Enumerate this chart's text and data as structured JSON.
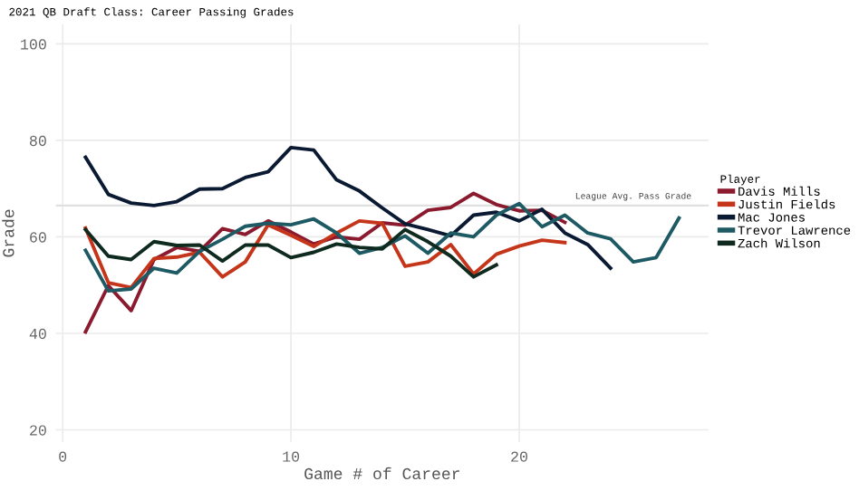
{
  "chart_data": {
    "type": "line",
    "title": "2021 QB Draft Class: Career Passing Grades",
    "xlabel": "Game # of Career",
    "ylabel": "Grade",
    "legend_title": "Player",
    "series": [
      {
        "name": "Davis Mills",
        "color": "#8b1a2e",
        "x": [
          1,
          2,
          3,
          4,
          5,
          6,
          7,
          8,
          9,
          10,
          11,
          12,
          13,
          14,
          15,
          16,
          17,
          18,
          19,
          20,
          21,
          22
        ],
        "values": [
          40.3,
          49.9,
          44.7,
          55.3,
          57.8,
          57,
          61.7,
          60.5,
          63.3,
          61,
          58.5,
          60,
          59.5,
          62.9,
          62.4,
          65.5,
          66.1,
          69,
          66.7,
          65.4,
          65.5,
          63
        ]
      },
      {
        "name": "Justin Fields",
        "color": "#c4351a",
        "x": [
          1,
          2,
          3,
          4,
          5,
          6,
          7,
          8,
          9,
          10,
          11,
          12,
          13,
          14,
          15,
          16,
          17,
          18,
          19,
          20,
          21,
          22
        ],
        "values": [
          61.8,
          50.5,
          49.5,
          55.5,
          55.8,
          56.8,
          51.7,
          54.8,
          62.5,
          60.3,
          58,
          60.8,
          63.3,
          62.8,
          53.9,
          54.8,
          58.4,
          52.3,
          56.4,
          58.1,
          59.3,
          58.8
        ]
      },
      {
        "name": "Mac Jones",
        "color": "#0b1a33",
        "x": [
          1,
          2,
          3,
          4,
          5,
          6,
          7,
          8,
          9,
          10,
          11,
          12,
          13,
          14,
          15,
          16,
          17,
          18,
          19,
          20,
          21,
          22,
          23,
          24
        ],
        "values": [
          76.5,
          68.8,
          67,
          66.5,
          67.3,
          69.9,
          70,
          72.3,
          73.5,
          78.5,
          78,
          71.8,
          69.5,
          66,
          62.7,
          61.5,
          60.2,
          64.5,
          65.1,
          63.3,
          65.7,
          60.8,
          58.4,
          53.5
        ]
      },
      {
        "name": "Trevor Lawrence",
        "color": "#1e5a63",
        "x": [
          1,
          2,
          3,
          4,
          5,
          6,
          7,
          8,
          9,
          10,
          11,
          12,
          13,
          14,
          15,
          16,
          17,
          18,
          19,
          20,
          21,
          22,
          23,
          24,
          25,
          26,
          27
        ],
        "values": [
          57.2,
          48.8,
          49.2,
          53.5,
          52.5,
          57,
          59.5,
          62.2,
          62.8,
          62.5,
          63.7,
          60.8,
          56.6,
          57.8,
          60.2,
          56.6,
          60.8,
          60,
          64.5,
          66.9,
          62.1,
          64.5,
          60.8,
          59.6,
          54.8,
          55.7,
          63.9
        ]
      },
      {
        "name": "Zach Wilson",
        "color": "#0f2a1f",
        "x": [
          1,
          2,
          3,
          4,
          5,
          6,
          7,
          8,
          9,
          10,
          11,
          12,
          13,
          14,
          15,
          16,
          17,
          18,
          19
        ],
        "values": [
          61.5,
          56,
          55.3,
          59,
          58.2,
          58.3,
          55,
          58.3,
          58.3,
          55.7,
          56.8,
          58.5,
          57.8,
          57.5,
          61.5,
          59,
          56,
          51.7,
          54.2
        ]
      }
    ],
    "ref_lines": [
      {
        "axis": "y",
        "value": 66.5,
        "label": "League Avg. Pass Grade",
        "color": "#e0e0e0"
      }
    ],
    "xlim": [
      -0.3,
      28.3
    ],
    "ylim": [
      17.5,
      104
    ],
    "xticks": [
      0,
      10,
      20
    ],
    "yticks": [
      20,
      40,
      60,
      80,
      100
    ],
    "grid": true,
    "legend": "right",
    "line_style": "solid",
    "marker": "none"
  }
}
